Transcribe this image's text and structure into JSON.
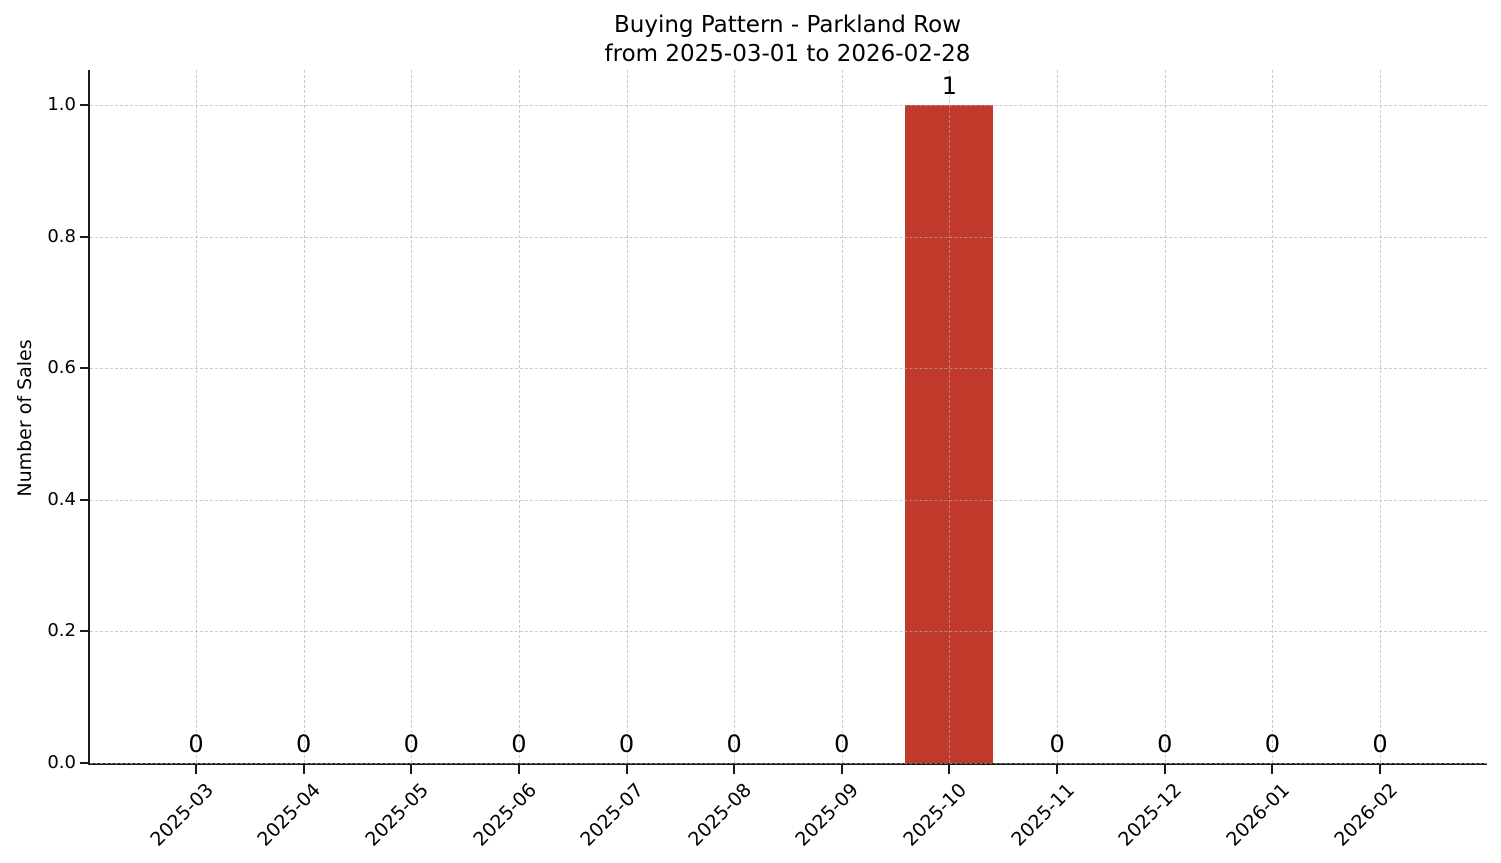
{
  "chart_data": {
    "type": "bar",
    "title": "Buying Pattern - Parkland Row",
    "subtitle": "from 2025-03-01 to 2026-02-28",
    "xlabel": "",
    "ylabel": "Number of Sales",
    "categories": [
      "2025-03",
      "2025-04",
      "2025-05",
      "2025-06",
      "2025-07",
      "2025-08",
      "2025-09",
      "2025-10",
      "2025-11",
      "2025-12",
      "2026-01",
      "2026-02"
    ],
    "values": [
      0,
      0,
      0,
      0,
      0,
      0,
      0,
      1,
      0,
      0,
      0,
      0
    ],
    "bar_value_labels": [
      "0",
      "0",
      "0",
      "0",
      "0",
      "0",
      "0",
      "1",
      "0",
      "0",
      "0",
      "0"
    ],
    "yticks": [
      0.0,
      0.2,
      0.4,
      0.6,
      0.8,
      1.0
    ],
    "ytick_labels": [
      "0.0",
      "0.2",
      "0.4",
      "0.6",
      "0.8",
      "1.0"
    ],
    "ylim": [
      0,
      1.05
    ],
    "bar_color": "#c0392b",
    "grid": true,
    "grid_style": "dashed",
    "x_tick_rotation_deg": 45,
    "legend_position": "none"
  }
}
